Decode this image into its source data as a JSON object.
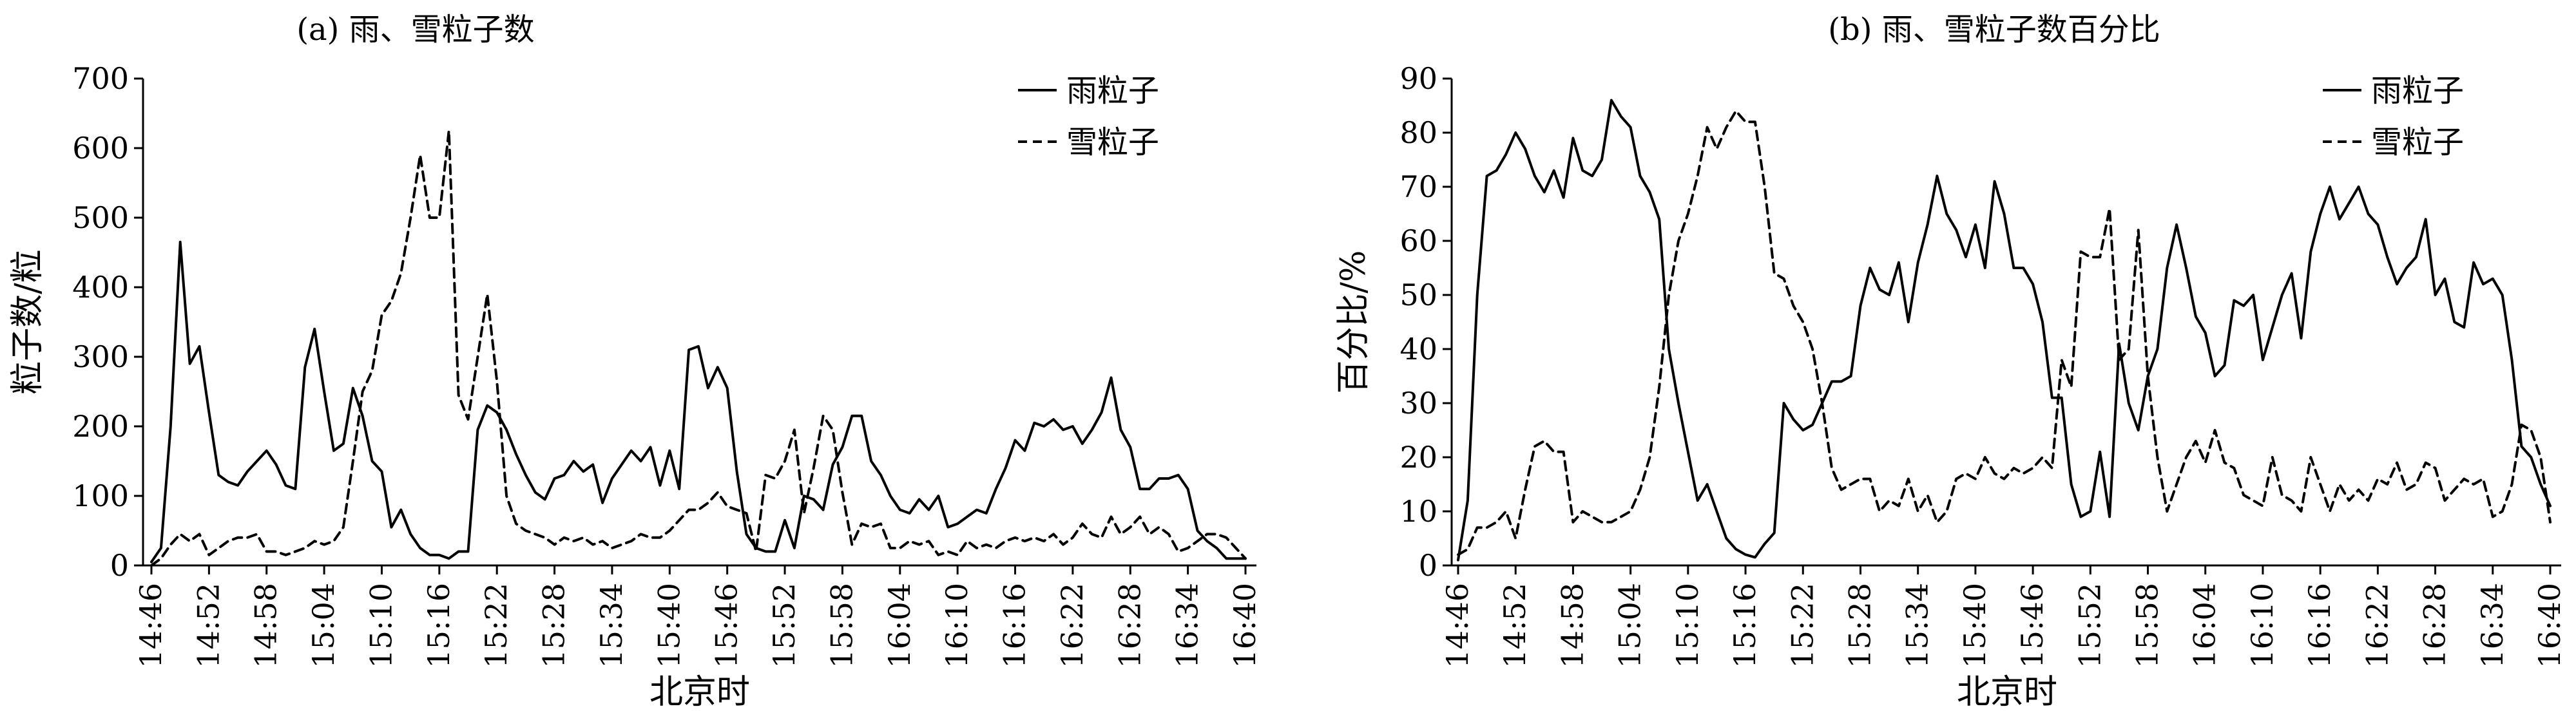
{
  "x_tick_labels": [
    "14:46",
    "14:52",
    "14:58",
    "15:04",
    "15:10",
    "15:16",
    "15:22",
    "15:28",
    "15:34",
    "15:40",
    "15:46",
    "15:52",
    "15:58",
    "16:04",
    "16:10",
    "16:16",
    "16:22",
    "16:28",
    "16:34",
    "16:40"
  ],
  "chart_data": [
    {
      "type": "line",
      "title": "(a) 雨、雪粒子数",
      "xlabel": "北京时",
      "ylabel": "粒子数/粒",
      "ylim": [
        0,
        700
      ],
      "yticks": [
        0,
        100,
        200,
        300,
        400,
        500,
        600,
        700
      ],
      "xlim_minutes_since_first": [
        0,
        114
      ],
      "legend_position": "top-right",
      "series": [
        {
          "name": "雨粒子",
          "style": "solid",
          "color": "#000000",
          "x": [
            "14:46",
            "14:47",
            "14:48",
            "14:49",
            "14:50",
            "14:51",
            "14:52",
            "14:53",
            "14:54",
            "14:55",
            "14:56",
            "14:57",
            "14:58",
            "14:59",
            "15:00",
            "15:01",
            "15:02",
            "15:03",
            "15:04",
            "15:05",
            "15:06",
            "15:07",
            "15:08",
            "15:09",
            "15:10",
            "15:11",
            "15:12",
            "15:13",
            "15:14",
            "15:15",
            "15:16",
            "15:17",
            "15:18",
            "15:19",
            "15:20",
            "15:21",
            "15:22",
            "15:23",
            "15:24",
            "15:25",
            "15:26",
            "15:27",
            "15:28",
            "15:29",
            "15:30",
            "15:31",
            "15:32",
            "15:33",
            "15:34",
            "15:35",
            "15:36",
            "15:37",
            "15:38",
            "15:39",
            "15:40",
            "15:41",
            "15:42",
            "15:43",
            "15:44",
            "15:45",
            "15:46",
            "15:47",
            "15:48",
            "15:49",
            "15:50",
            "15:51",
            "15:52",
            "15:53",
            "15:54",
            "15:55",
            "15:56",
            "15:57",
            "15:58",
            "15:59",
            "16:00",
            "16:01",
            "16:02",
            "16:03",
            "16:04",
            "16:05",
            "16:06",
            "16:07",
            "16:08",
            "16:09",
            "16:10",
            "16:11",
            "16:12",
            "16:13",
            "16:14",
            "16:15",
            "16:16",
            "16:17",
            "16:18",
            "16:19",
            "16:20",
            "16:21",
            "16:22",
            "16:23",
            "16:24",
            "16:25",
            "16:26",
            "16:27",
            "16:28",
            "16:29",
            "16:30",
            "16:31",
            "16:32",
            "16:33",
            "16:34",
            "16:35",
            "16:36",
            "16:37",
            "16:38",
            "16:39",
            "16:40"
          ],
          "values": [
            5,
            25,
            200,
            465,
            290,
            315,
            220,
            130,
            120,
            115,
            135,
            150,
            165,
            145,
            115,
            110,
            285,
            340,
            250,
            165,
            175,
            255,
            215,
            150,
            135,
            55,
            80,
            45,
            25,
            15,
            15,
            10,
            20,
            20,
            195,
            230,
            220,
            195,
            160,
            130,
            105,
            95,
            125,
            130,
            150,
            135,
            145,
            90,
            125,
            145,
            165,
            150,
            170,
            115,
            165,
            110,
            310,
            315,
            255,
            285,
            255,
            135,
            45,
            25,
            20,
            20,
            65,
            25,
            100,
            95,
            80,
            145,
            170,
            215,
            215,
            150,
            130,
            100,
            80,
            75,
            95,
            80,
            100,
            55,
            60,
            70,
            80,
            75,
            110,
            140,
            180,
            165,
            205,
            200,
            210,
            195,
            200,
            175,
            195,
            220,
            270,
            195,
            170,
            110,
            110,
            125,
            125,
            130,
            110,
            50,
            35,
            25,
            10,
            10,
            10
          ]
        },
        {
          "name": "雪粒子",
          "style": "dashed",
          "color": "#000000",
          "x": [
            "14:46",
            "14:47",
            "14:48",
            "14:49",
            "14:50",
            "14:51",
            "14:52",
            "14:53",
            "14:54",
            "14:55",
            "14:56",
            "14:57",
            "14:58",
            "14:59",
            "15:00",
            "15:01",
            "15:02",
            "15:03",
            "15:04",
            "15:05",
            "15:06",
            "15:07",
            "15:08",
            "15:09",
            "15:10",
            "15:11",
            "15:12",
            "15:13",
            "15:14",
            "15:15",
            "15:16",
            "15:17",
            "15:18",
            "15:19",
            "15:20",
            "15:21",
            "15:22",
            "15:23",
            "15:24",
            "15:25",
            "15:26",
            "15:27",
            "15:28",
            "15:29",
            "15:30",
            "15:31",
            "15:32",
            "15:33",
            "15:34",
            "15:35",
            "15:36",
            "15:37",
            "15:38",
            "15:39",
            "15:40",
            "15:41",
            "15:42",
            "15:43",
            "15:44",
            "15:45",
            "15:46",
            "15:47",
            "15:48",
            "15:49",
            "15:50",
            "15:51",
            "15:52",
            "15:53",
            "15:54",
            "15:55",
            "15:56",
            "15:57",
            "15:58",
            "15:59",
            "16:00",
            "16:01",
            "16:02",
            "16:03",
            "16:04",
            "16:05",
            "16:06",
            "16:07",
            "16:08",
            "16:09",
            "16:10",
            "16:11",
            "16:12",
            "16:13",
            "16:14",
            "16:15",
            "16:16",
            "16:17",
            "16:18",
            "16:19",
            "16:20",
            "16:21",
            "16:22",
            "16:23",
            "16:24",
            "16:25",
            "16:26",
            "16:27",
            "16:28",
            "16:29",
            "16:30",
            "16:31",
            "16:32",
            "16:33",
            "16:34",
            "16:35",
            "16:36",
            "16:37",
            "16:38",
            "16:39",
            "16:40"
          ],
          "values": [
            0,
            10,
            30,
            45,
            35,
            45,
            15,
            25,
            35,
            40,
            40,
            45,
            20,
            20,
            15,
            20,
            25,
            35,
            30,
            35,
            55,
            150,
            250,
            280,
            360,
            380,
            420,
            500,
            590,
            500,
            500,
            625,
            245,
            210,
            300,
            390,
            265,
            100,
            60,
            50,
            45,
            40,
            30,
            40,
            35,
            40,
            30,
            35,
            25,
            30,
            35,
            45,
            40,
            40,
            50,
            65,
            80,
            80,
            90,
            105,
            85,
            80,
            75,
            20,
            130,
            125,
            150,
            195,
            75,
            140,
            215,
            195,
            105,
            30,
            60,
            55,
            60,
            25,
            25,
            35,
            30,
            35,
            15,
            20,
            15,
            35,
            25,
            30,
            25,
            35,
            40,
            35,
            40,
            35,
            45,
            30,
            40,
            60,
            45,
            40,
            70,
            45,
            55,
            70,
            45,
            55,
            45,
            20,
            25,
            35,
            45,
            45,
            40,
            25,
            10
          ]
        }
      ]
    },
    {
      "type": "line",
      "title": "(b) 雨、雪粒子数百分比",
      "xlabel": "北京时",
      "ylabel": "百分比/%",
      "ylim": [
        0,
        90
      ],
      "yticks": [
        0,
        10,
        20,
        30,
        40,
        50,
        60,
        70,
        80,
        90
      ],
      "xlim_minutes_since_first": [
        0,
        114
      ],
      "legend_position": "top-right",
      "series": [
        {
          "name": "雨粒子",
          "style": "solid",
          "color": "#000000",
          "x": [
            "14:46",
            "14:47",
            "14:48",
            "14:49",
            "14:50",
            "14:51",
            "14:52",
            "14:53",
            "14:54",
            "14:55",
            "14:56",
            "14:57",
            "14:58",
            "14:59",
            "15:00",
            "15:01",
            "15:02",
            "15:03",
            "15:04",
            "15:05",
            "15:06",
            "15:07",
            "15:08",
            "15:09",
            "15:10",
            "15:11",
            "15:12",
            "15:13",
            "15:14",
            "15:15",
            "15:16",
            "15:17",
            "15:18",
            "15:19",
            "15:20",
            "15:21",
            "15:22",
            "15:23",
            "15:24",
            "15:25",
            "15:26",
            "15:27",
            "15:28",
            "15:29",
            "15:30",
            "15:31",
            "15:32",
            "15:33",
            "15:34",
            "15:35",
            "15:36",
            "15:37",
            "15:38",
            "15:39",
            "15:40",
            "15:41",
            "15:42",
            "15:43",
            "15:44",
            "15:45",
            "15:46",
            "15:47",
            "15:48",
            "15:49",
            "15:50",
            "15:51",
            "15:52",
            "15:53",
            "15:54",
            "15:55",
            "15:56",
            "15:57",
            "15:58",
            "15:59",
            "16:00",
            "16:01",
            "16:02",
            "16:03",
            "16:04",
            "16:05",
            "16:06",
            "16:07",
            "16:08",
            "16:09",
            "16:10",
            "16:11",
            "16:12",
            "16:13",
            "16:14",
            "16:15",
            "16:16",
            "16:17",
            "16:18",
            "16:19",
            "16:20",
            "16:21",
            "16:22",
            "16:23",
            "16:24",
            "16:25",
            "16:26",
            "16:27",
            "16:28",
            "16:29",
            "16:30",
            "16:31",
            "16:32",
            "16:33",
            "16:34",
            "16:35",
            "16:36",
            "16:37",
            "16:38",
            "16:39",
            "16:40"
          ],
          "values": [
            1,
            12,
            50,
            72,
            73,
            76,
            80,
            77,
            72,
            69,
            73,
            68,
            79,
            73,
            72,
            75,
            86,
            83,
            81,
            72,
            69,
            64,
            40,
            30,
            21,
            12,
            15,
            10,
            5,
            3,
            2,
            1.5,
            4,
            6,
            30,
            27,
            25,
            26,
            30,
            34,
            34,
            35,
            48,
            55,
            51,
            50,
            56,
            45,
            56,
            63,
            72,
            65,
            62,
            57,
            63,
            55,
            71,
            65,
            55,
            55,
            52,
            45,
            31,
            31,
            15,
            9,
            10,
            21,
            9,
            41,
            30,
            25,
            35,
            40,
            55,
            63,
            55,
            46,
            43,
            35,
            37,
            49,
            48,
            50,
            38,
            44,
            50,
            54,
            42,
            58,
            65,
            70,
            64,
            67,
            70,
            65,
            63,
            57,
            52,
            55,
            57,
            64,
            50,
            53,
            45,
            44,
            56,
            52,
            53,
            50,
            38,
            22,
            20,
            15,
            11
          ]
        },
        {
          "name": "雪粒子",
          "style": "dashed",
          "color": "#000000",
          "x": [
            "14:46",
            "14:47",
            "14:48",
            "14:49",
            "14:50",
            "14:51",
            "14:52",
            "14:53",
            "14:54",
            "14:55",
            "14:56",
            "14:57",
            "14:58",
            "14:59",
            "15:00",
            "15:01",
            "15:02",
            "15:03",
            "15:04",
            "15:05",
            "15:06",
            "15:07",
            "15:08",
            "15:09",
            "15:10",
            "15:11",
            "15:12",
            "15:13",
            "15:14",
            "15:15",
            "15:16",
            "15:17",
            "15:18",
            "15:19",
            "15:20",
            "15:21",
            "15:22",
            "15:23",
            "15:24",
            "15:25",
            "15:26",
            "15:27",
            "15:28",
            "15:29",
            "15:30",
            "15:31",
            "15:32",
            "15:33",
            "15:34",
            "15:35",
            "15:36",
            "15:37",
            "15:38",
            "15:39",
            "15:40",
            "15:41",
            "15:42",
            "15:43",
            "15:44",
            "15:45",
            "15:46",
            "15:47",
            "15:48",
            "15:49",
            "15:50",
            "15:51",
            "15:52",
            "15:53",
            "15:54",
            "15:55",
            "15:56",
            "15:57",
            "15:58",
            "15:59",
            "16:00",
            "16:01",
            "16:02",
            "16:03",
            "16:04",
            "16:05",
            "16:06",
            "16:07",
            "16:08",
            "16:09",
            "16:10",
            "16:11",
            "16:12",
            "16:13",
            "16:14",
            "16:15",
            "16:16",
            "16:17",
            "16:18",
            "16:19",
            "16:20",
            "16:21",
            "16:22",
            "16:23",
            "16:24",
            "16:25",
            "16:26",
            "16:27",
            "16:28",
            "16:29",
            "16:30",
            "16:31",
            "16:32",
            "16:33",
            "16:34",
            "16:35",
            "16:36",
            "16:37",
            "16:38",
            "16:39",
            "16:40"
          ],
          "values": [
            2,
            3,
            7,
            7,
            8,
            10,
            5,
            14,
            22,
            23,
            21,
            21,
            8,
            10,
            9,
            8,
            8,
            9,
            10,
            14,
            20,
            33,
            50,
            60,
            65,
            72,
            81,
            77,
            81,
            84,
            82,
            82,
            70,
            54,
            53,
            48,
            45,
            40,
            30,
            18,
            14,
            15,
            16,
            16,
            10,
            12,
            11,
            16,
            10,
            13,
            8,
            10,
            16,
            17,
            16,
            20,
            17,
            16,
            18,
            17,
            18,
            20,
            18,
            38,
            33,
            58,
            57,
            57,
            66,
            38,
            40,
            62,
            35,
            20,
            10,
            15,
            20,
            23,
            19,
            25,
            19,
            18,
            13,
            12,
            11,
            20,
            13,
            12,
            10,
            20,
            15,
            10,
            15,
            12,
            14,
            12,
            16,
            15,
            19,
            14,
            15,
            19,
            18,
            12,
            14,
            16,
            15,
            16,
            9,
            10,
            15,
            26,
            25,
            20,
            8
          ]
        }
      ]
    }
  ]
}
